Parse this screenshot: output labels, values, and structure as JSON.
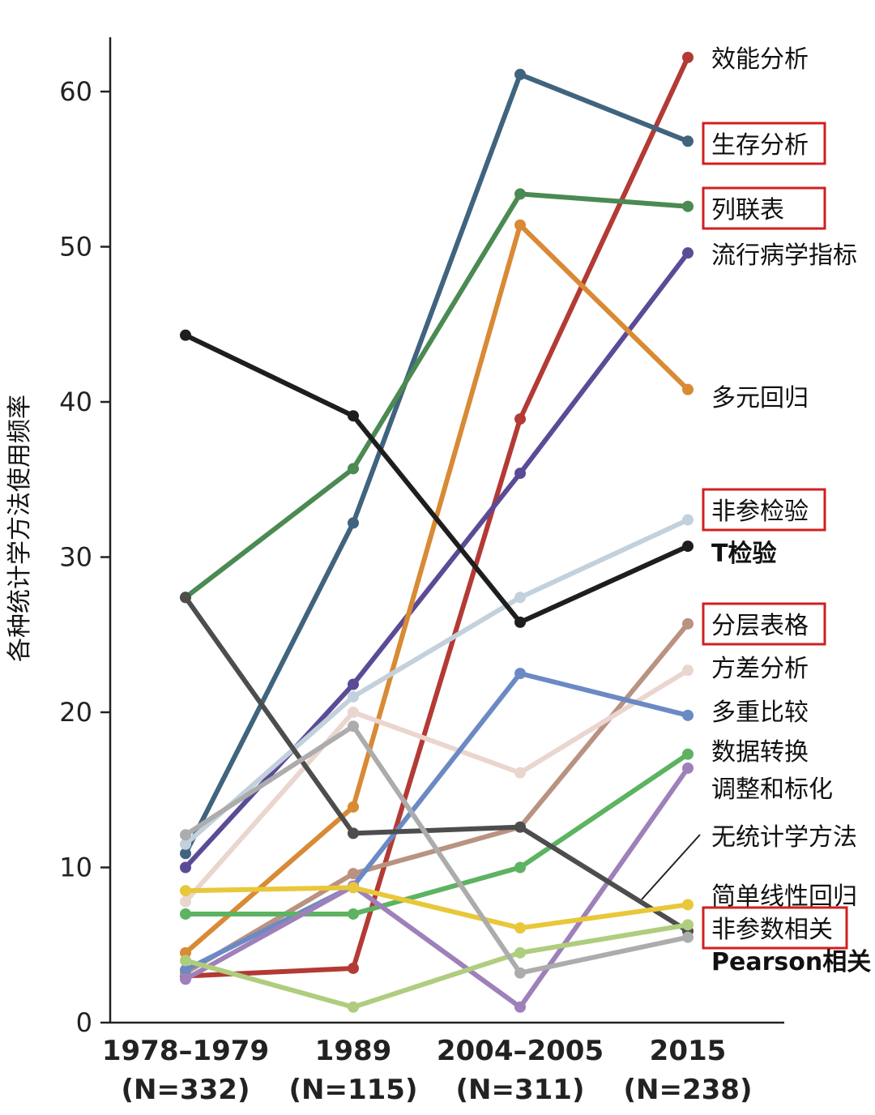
{
  "chart_data": {
    "type": "line",
    "title": "",
    "ylabel": "各种统计学方法使用频率",
    "xlabel": "",
    "ylim": [
      0,
      65
    ],
    "yticks": [
      "0",
      "10",
      "20",
      "30",
      "40",
      "50",
      "60"
    ],
    "categories": [
      "1978–1979",
      "1989",
      "2004–2005",
      "2015"
    ],
    "category_notes": [
      "(N=332)",
      "(N=115)",
      "(N=311)",
      "(N=238)"
    ],
    "grid": false,
    "legend": "right-side line end labels",
    "series": [
      {
        "name": "效能分析",
        "color": "#b33a35",
        "values": [
          3,
          3.5,
          38.9,
          62.2
        ],
        "boxed": false
      },
      {
        "name": "生存分析",
        "color": "#40647e",
        "values": [
          10.9,
          32.2,
          61.1,
          56.8
        ],
        "boxed": true
      },
      {
        "name": "列联表",
        "color": "#4b8a52",
        "values": [
          27.4,
          35.7,
          53.4,
          52.6
        ],
        "boxed": true
      },
      {
        "name": "流行病学指标",
        "color": "#5b4b97",
        "values": [
          10,
          21.8,
          35.4,
          49.6
        ],
        "boxed": false
      },
      {
        "name": "多元回归",
        "color": "#d88a34",
        "values": [
          4.5,
          13.9,
          51.4,
          40.8
        ],
        "boxed": false
      },
      {
        "name": "非参检验",
        "color": "#c2d1dc",
        "values": [
          11.5,
          21,
          27.4,
          32.4
        ],
        "boxed": true
      },
      {
        "name": "T检验",
        "color": "#1e1e1e",
        "values": [
          44.3,
          39.1,
          25.8,
          30.7
        ],
        "boxed": false
      },
      {
        "name": "分层表格",
        "color": "#b99282",
        "values": [
          3.2,
          9.6,
          12.6,
          25.7
        ],
        "boxed": true
      },
      {
        "name": "方差分析",
        "color": "#ead5cf",
        "values": [
          7.8,
          20,
          16.1,
          22.7
        ],
        "boxed": false
      },
      {
        "name": "多重比较",
        "color": "#6b8ac4",
        "values": [
          3.4,
          8.8,
          22.5,
          19.8
        ],
        "boxed": false
      },
      {
        "name": "数据转换",
        "color": "#5cb361",
        "values": [
          7,
          7,
          10,
          17.3
        ],
        "boxed": false
      },
      {
        "name": "调整和标化",
        "color": "#9e80ba",
        "values": [
          2.8,
          8.8,
          1,
          16.4
        ],
        "boxed": false
      },
      {
        "name": "无统计学方法",
        "color": "#4d4d4d",
        "values": [
          27.4,
          12.2,
          12.6,
          5.9
        ],
        "boxed": false
      },
      {
        "name": "简单线性回归",
        "color": "#e8c73a",
        "values": [
          8.5,
          8.7,
          6.1,
          7.6
        ],
        "boxed": false
      },
      {
        "name": "非参数相关",
        "color": "#afcd7e",
        "values": [
          4,
          1,
          4.5,
          6.3
        ],
        "boxed": true
      },
      {
        "name": "Pearson相关",
        "color": "#acacac",
        "values": [
          12.1,
          19.1,
          3.2,
          5.5
        ],
        "boxed": false
      }
    ]
  }
}
